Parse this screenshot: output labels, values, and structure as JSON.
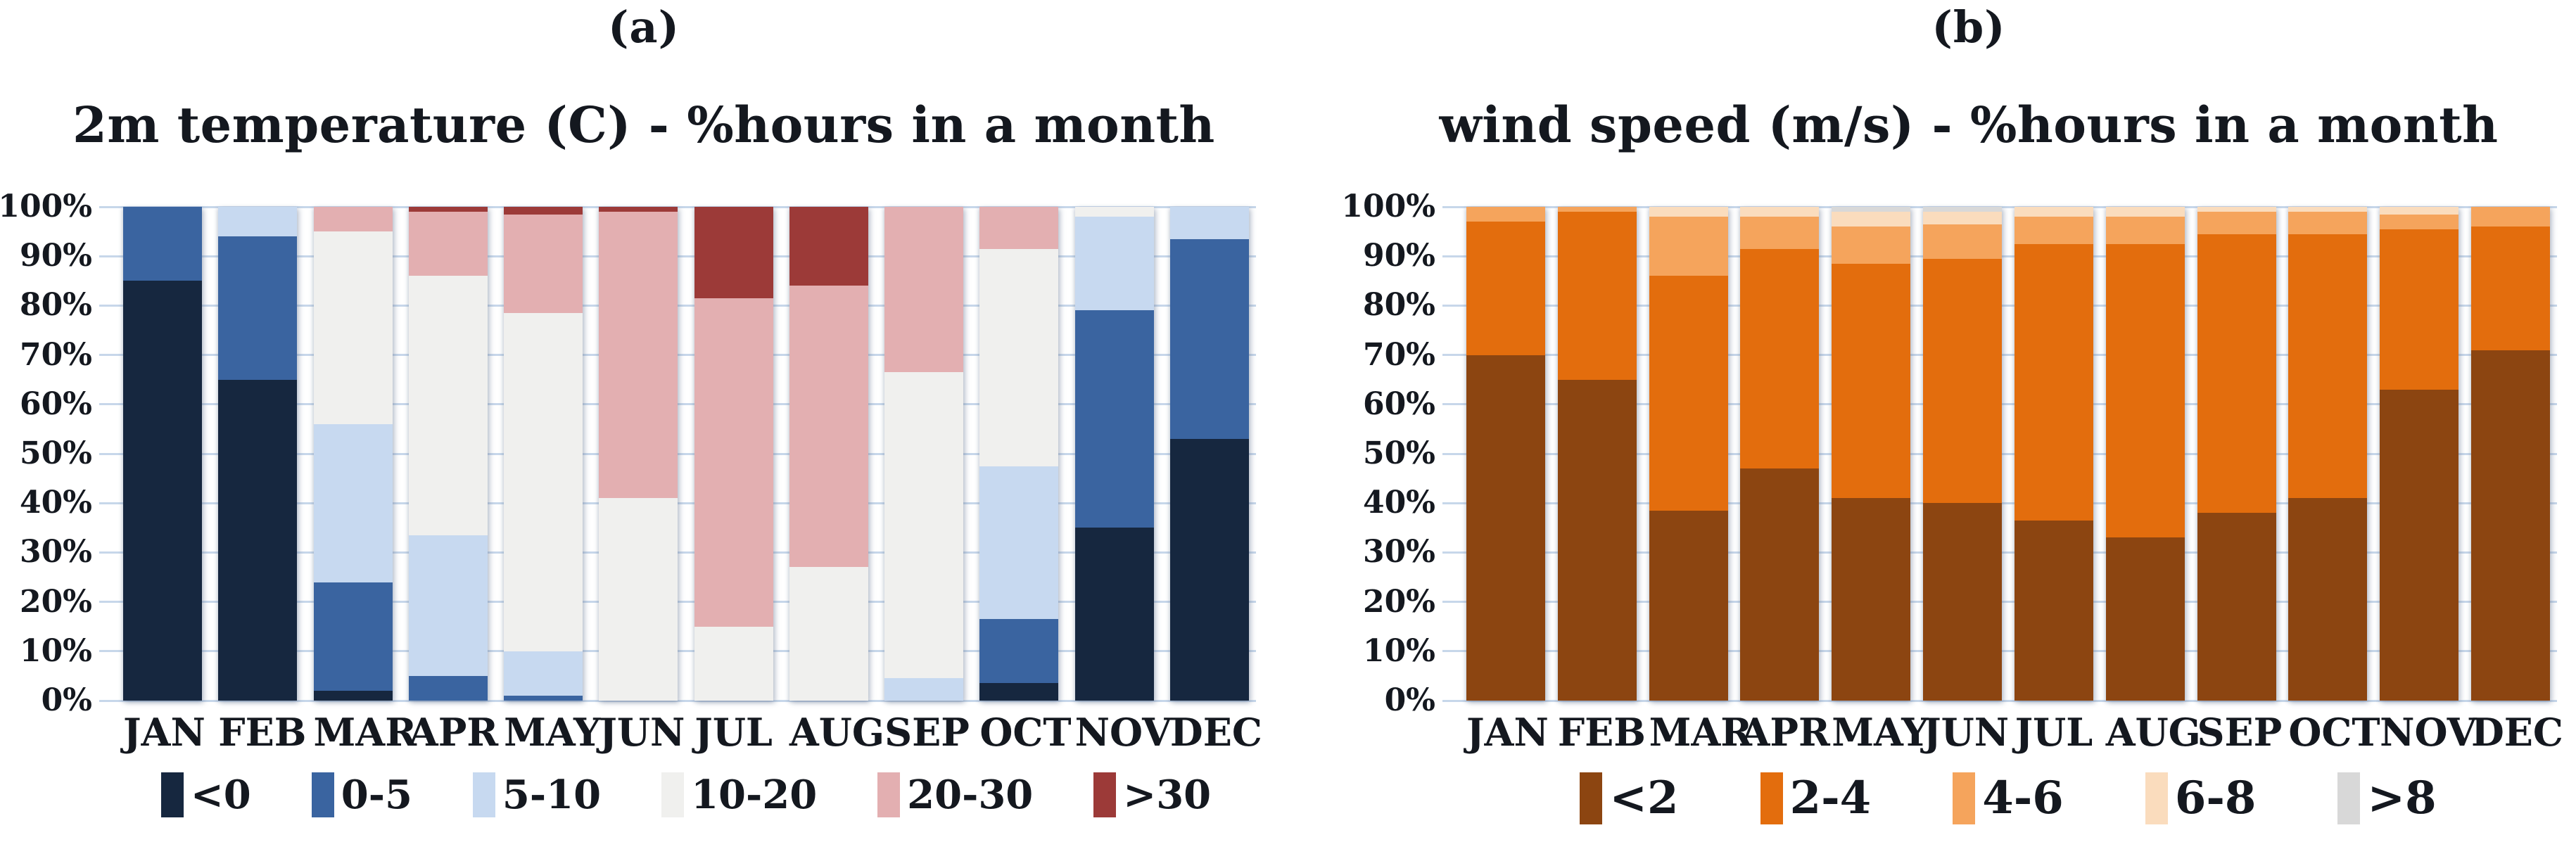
{
  "panels": [
    {
      "label": "(a)"
    },
    {
      "label": "(b)"
    }
  ],
  "axis": {
    "grid_color": "#c7d7ea",
    "text_color": "#14181f"
  },
  "chart_data": [
    {
      "type": "bar",
      "stacked": true,
      "units": "% of hours",
      "title": "2m temperature (C) - %hours in a month",
      "categories": [
        "JAN",
        "FEB",
        "MAR",
        "APR",
        "MAY",
        "JUN",
        "JUL",
        "AUG",
        "SEP",
        "OCT",
        "NOV",
        "DEC"
      ],
      "yticks": [
        "0%",
        "10%",
        "20%",
        "30%",
        "40%",
        "50%",
        "60%",
        "70%",
        "80%",
        "90%",
        "100%"
      ],
      "ylim": [
        0,
        100
      ],
      "grid": true,
      "legend_position": "bottom",
      "series": [
        {
          "name": "<0",
          "color": "#16273f",
          "values": [
            85,
            65,
            2,
            0,
            0,
            0,
            0,
            0,
            0,
            3.5,
            35,
            53
          ]
        },
        {
          "name": "0-5",
          "color": "#3a64a0",
          "values": [
            15,
            29,
            22,
            5,
            1,
            0,
            0,
            0,
            0,
            13,
            44,
            40.5
          ]
        },
        {
          "name": "5-10",
          "color": "#c7d9f0",
          "values": [
            0,
            6,
            32,
            28.5,
            9,
            0,
            0,
            0,
            4.5,
            31,
            19,
            6.5
          ]
        },
        {
          "name": "10-20",
          "color": "#f0f0ee",
          "values": [
            0,
            0,
            39,
            52.5,
            68.5,
            41,
            15,
            27,
            62,
            44,
            2,
            0
          ]
        },
        {
          "name": "20-30",
          "color": "#e3afb1",
          "values": [
            0,
            0,
            5,
            13,
            20,
            58,
            66.5,
            57,
            33.5,
            8.5,
            0,
            0
          ]
        },
        {
          "name": ">30",
          "color": "#9c3a38",
          "values": [
            0,
            0,
            0,
            1,
            1.5,
            1,
            18.5,
            16,
            0,
            0,
            0,
            0
          ]
        }
      ]
    },
    {
      "type": "bar",
      "stacked": true,
      "units": "% of hours",
      "title": "wind speed (m/s) - %hours in a month",
      "categories": [
        "JAN",
        "FEB",
        "MAR",
        "APR",
        "MAY",
        "JUN",
        "JUL",
        "AUG",
        "SEP",
        "OCT",
        "NOV",
        "DEC"
      ],
      "yticks": [
        "0%",
        "10%",
        "20%",
        "30%",
        "40%",
        "50%",
        "60%",
        "70%",
        "80%",
        "90%",
        "100%"
      ],
      "ylim": [
        0,
        100
      ],
      "grid": true,
      "legend_position": "bottom",
      "series": [
        {
          "name": "<2",
          "color": "#8c4511",
          "values": [
            70,
            65,
            38.5,
            47,
            41,
            40,
            36.5,
            33,
            38,
            41,
            63,
            71
          ]
        },
        {
          "name": "2-4",
          "color": "#e36d0d",
          "values": [
            27,
            34,
            47.5,
            44.5,
            47.5,
            49.5,
            56,
            59.5,
            56.5,
            53.5,
            32.5,
            25
          ]
        },
        {
          "name": "4-6",
          "color": "#f5a45c",
          "values": [
            3,
            1,
            12,
            6.5,
            7.5,
            7,
            5.5,
            5.5,
            4.5,
            4.5,
            3,
            4
          ]
        },
        {
          "name": "6-8",
          "color": "#fadcbd",
          "values": [
            0,
            0,
            2,
            2,
            3,
            2.5,
            2,
            2,
            1,
            1,
            1.5,
            0
          ]
        },
        {
          "name": ">8",
          "color": "#d8d8d8",
          "values": [
            0,
            0,
            0,
            0,
            1,
            1,
            0,
            0,
            0,
            0,
            0,
            0
          ]
        }
      ]
    }
  ]
}
